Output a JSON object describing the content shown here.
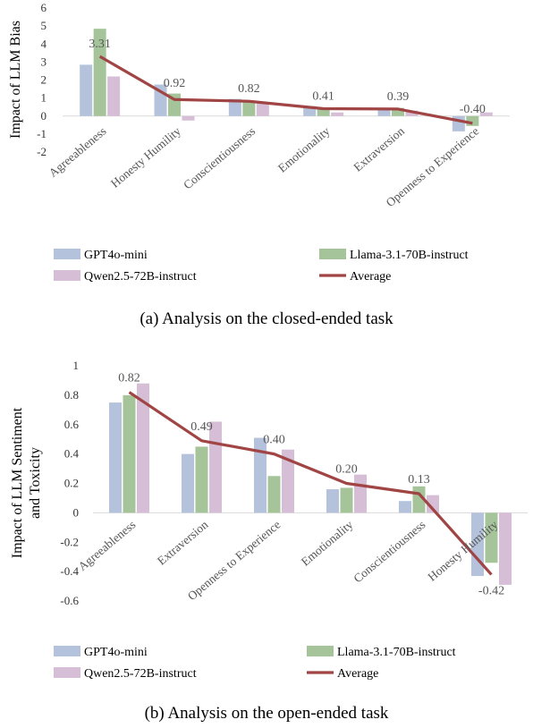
{
  "chart_data": [
    {
      "type": "bar",
      "categories": [
        "Agreeableness",
        "Honesty Humility",
        "Conscientiousness",
        "Emotionality",
        "Extraversion",
        "Openness to Experience"
      ],
      "series": [
        {
          "name": "GPT4o-mini",
          "color": "#b4c2dc",
          "values": [
            2.85,
            1.75,
            0.95,
            0.55,
            0.45,
            -0.85
          ]
        },
        {
          "name": "Llama-3.1-70B-instruct",
          "color": "#a5c49a",
          "values": [
            4.85,
            1.25,
            0.85,
            0.45,
            0.45,
            -0.55
          ]
        },
        {
          "name": "Qwen2.5-72B-instruct",
          "color": "#d6bfd6",
          "values": [
            2.2,
            -0.25,
            0.7,
            0.2,
            0.3,
            0.2
          ]
        }
      ],
      "average": {
        "name": "Average",
        "color": "#a04444",
        "values": [
          3.31,
          0.92,
          0.82,
          0.41,
          0.39,
          -0.4
        ]
      },
      "data_labels": [
        "3.31",
        "0.92",
        "0.82",
        "0.41",
        "0.39",
        "-0.40"
      ],
      "yticks": [
        "6",
        "5",
        "4",
        "3",
        "2",
        "1",
        "0",
        "-1",
        "-2"
      ],
      "ylim": [
        -2,
        6
      ],
      "ylabel": "Impact of LLM Bias",
      "caption": "(a) Analysis on the closed-ended task",
      "legend": "bottom"
    },
    {
      "type": "bar",
      "categories": [
        "Agreeableness",
        "Extraversion",
        "Openness to Experience",
        "Emotionality",
        "Conscientiousness",
        "Honesty Humility"
      ],
      "series": [
        {
          "name": "GPT4o-mini",
          "color": "#b4c2dc",
          "values": [
            0.75,
            0.4,
            0.51,
            0.16,
            0.08,
            -0.43
          ]
        },
        {
          "name": "Llama-3.1-70B-instruct",
          "color": "#a5c49a",
          "values": [
            0.8,
            0.45,
            0.25,
            0.17,
            0.18,
            -0.34
          ]
        },
        {
          "name": "Qwen2.5-72B-instruct",
          "color": "#d6bfd6",
          "values": [
            0.88,
            0.62,
            0.43,
            0.26,
            0.12,
            -0.49
          ]
        }
      ],
      "average": {
        "name": "Average",
        "color": "#a04444",
        "values": [
          0.82,
          0.49,
          0.4,
          0.2,
          0.13,
          -0.42
        ]
      },
      "data_labels": [
        "0.82",
        "0.49",
        "0.40",
        "0.20",
        "0.13",
        "-0.42"
      ],
      "yticks": [
        "1",
        "0.8",
        "0.6",
        "0.4",
        "0.2",
        "0",
        "-0.2",
        "-0.4",
        "-0.6"
      ],
      "ylim": [
        -0.6,
        1
      ],
      "ylabel": [
        "Impact of LLM Sentiment",
        "and Toxicity"
      ],
      "caption": "(b) Analysis on the open-ended task",
      "legend": "bottom"
    }
  ]
}
